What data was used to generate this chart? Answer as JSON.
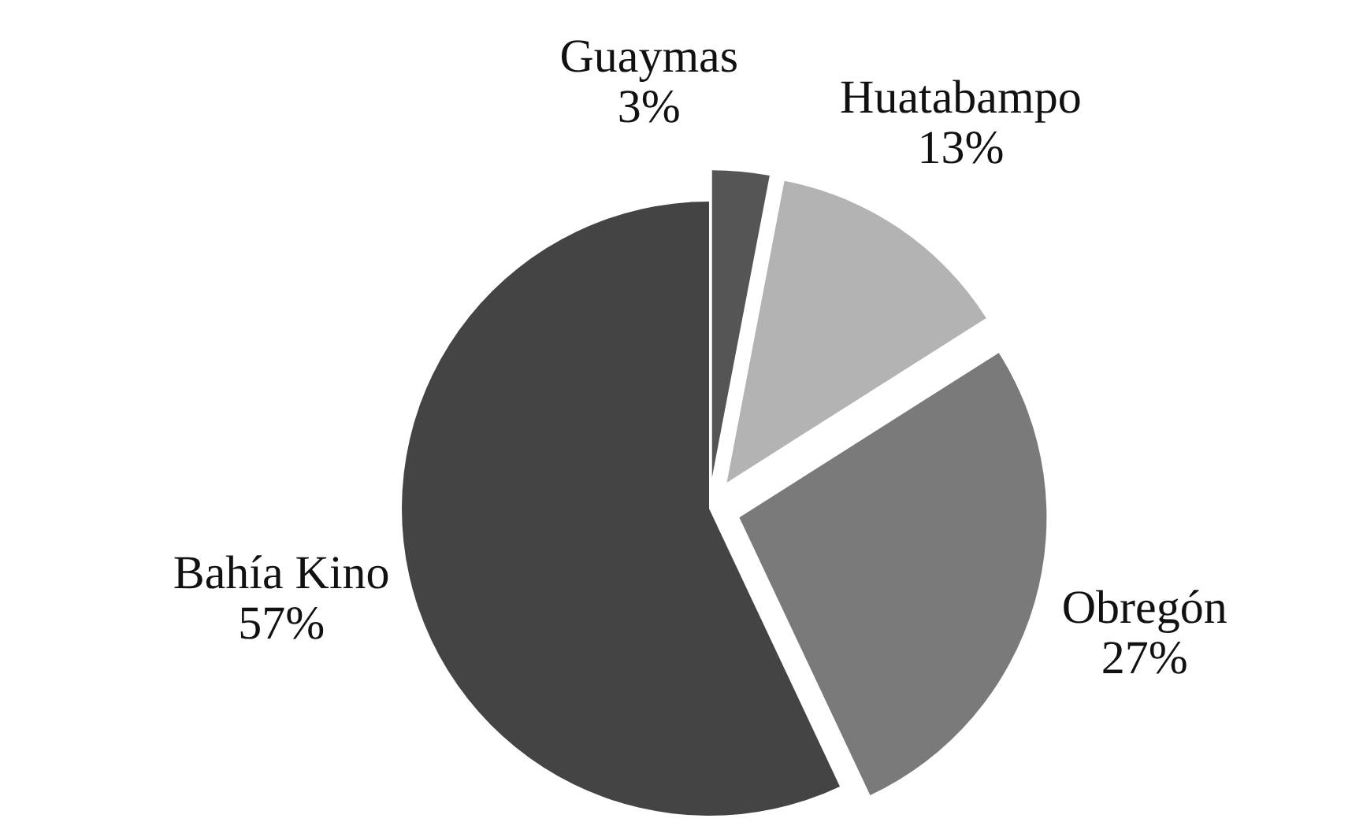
{
  "chart_data": {
    "type": "pie",
    "categories": [
      "Guaymas",
      "Huatabampo",
      "Obregón",
      "Bahía Kino"
    ],
    "values": [
      3,
      13,
      27,
      57
    ],
    "colors": [
      "#555555",
      "#b3b3b3",
      "#7a7a7a",
      "#444444"
    ],
    "value_labels": [
      "3%",
      "13%",
      "27%",
      "57%"
    ]
  }
}
